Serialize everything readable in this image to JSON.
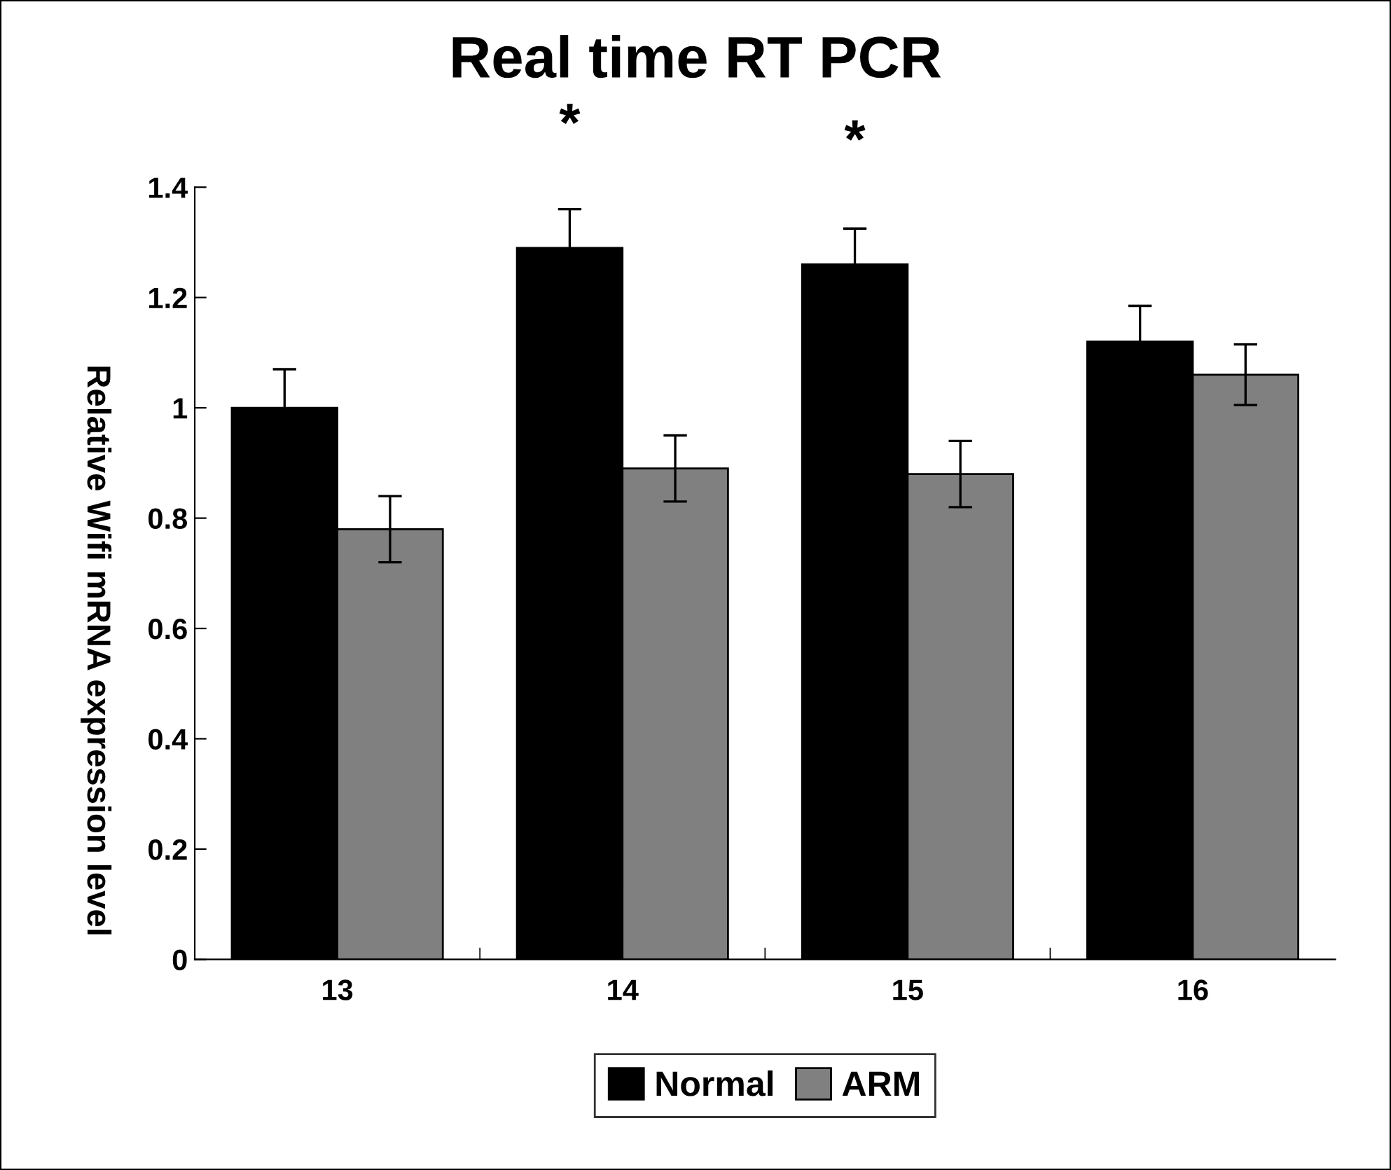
{
  "chart_data": {
    "type": "bar",
    "title": "Real time RT PCR",
    "ylabel": "Relative Wifi mRNA expression level",
    "categories": [
      "13",
      "14",
      "15",
      "16"
    ],
    "series": [
      {
        "name": "Normal",
        "color": "#000000",
        "values": [
          1.0,
          1.29,
          1.26,
          1.12
        ],
        "errors": [
          0.07,
          0.07,
          0.065,
          0.065
        ]
      },
      {
        "name": "ARM",
        "color": "#808080",
        "values": [
          0.78,
          0.89,
          0.88,
          1.06
        ],
        "errors": [
          0.06,
          0.06,
          0.06,
          0.055
        ]
      }
    ],
    "annotations": [
      {
        "text": "*",
        "x": "14",
        "y": 1.29
      },
      {
        "text": "*",
        "x": "15",
        "y": 1.26
      }
    ],
    "ylim": [
      0,
      1.4
    ],
    "yticks": [
      0,
      0.2,
      0.4,
      0.6,
      0.8,
      {
        "value": 1,
        "label": "1"
      },
      1.2,
      1.4
    ],
    "grid": false,
    "legend": "bottom"
  }
}
